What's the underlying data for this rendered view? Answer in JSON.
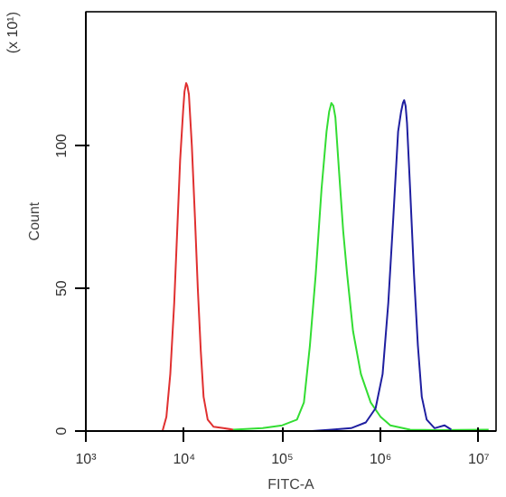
{
  "chart_data": {
    "type": "line",
    "xlabel": "FITC-A",
    "ylabel": "Count",
    "annotations": [
      "(x 10¹)"
    ],
    "log": "x",
    "grid": false,
    "marker": "none",
    "xlim": [
      1000,
      15000000
    ],
    "xticks": [
      {
        "value": 1000,
        "label": "10³"
      },
      {
        "value": 10000,
        "label": "10⁴"
      },
      {
        "value": 100000,
        "label": "10⁵"
      },
      {
        "value": 1000000,
        "label": "10⁶"
      },
      {
        "value": 10000000,
        "label": "10⁷"
      }
    ],
    "ylim": [
      0,
      147
    ],
    "yticks": [
      0,
      50,
      100
    ],
    "series": [
      {
        "color": "#e03030",
        "x": [
          5000,
          6030,
          6610,
          7240,
          7940,
          8510,
          9120,
          9770,
          10100,
          10500,
          10800,
          11200,
          12000,
          12900,
          13800,
          14800,
          15800,
          17400,
          20000,
          25100,
          31600
        ],
        "values": [
          0,
          0,
          5,
          20,
          45,
          70,
          95,
          112,
          119,
          122,
          121,
          118,
          100,
          75,
          50,
          28,
          12,
          4,
          1.5,
          1,
          0.5
        ]
      },
      {
        "color": "#33dd33",
        "x": [
          31600,
          63100,
          100000,
          141000,
          166000,
          191000,
          219000,
          251000,
          282000,
          300000,
          316000,
          331000,
          347000,
          380000,
          417000,
          457000,
          525000,
          631000,
          794000,
          1000000,
          1260000,
          2000000,
          3980000,
          12600000
        ],
        "values": [
          0.5,
          1,
          2,
          4,
          10,
          30,
          55,
          85,
          105,
          112,
          115,
          114,
          110,
          90,
          70,
          55,
          35,
          20,
          10,
          5,
          2,
          0.5,
          0.3,
          0.5
        ]
      },
      {
        "color": "#1f1fa0",
        "x": [
          200000,
          316000,
          501000,
          708000,
          891000,
          1050000,
          1200000,
          1350000,
          1510000,
          1620000,
          1690000,
          1740000,
          1800000,
          1860000,
          2000000,
          2190000,
          2400000,
          2630000,
          2950000,
          3550000,
          4470000,
          5250000
        ],
        "values": [
          0,
          0.5,
          1,
          3,
          8,
          20,
          45,
          75,
          105,
          112,
          115,
          116,
          114,
          108,
          85,
          55,
          30,
          12,
          4,
          1,
          2,
          0.5
        ]
      }
    ]
  }
}
